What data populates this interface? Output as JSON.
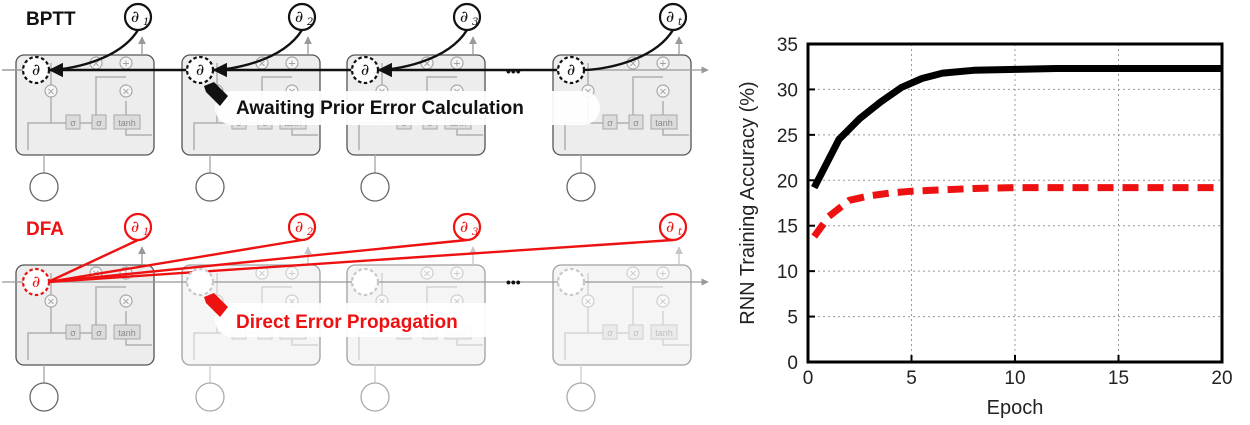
{
  "diagram": {
    "bptt_label": "BPTT",
    "dfa_label": "DFA",
    "bptt_callout": "Awaiting Prior Error Calculation",
    "dfa_callout": "Direct Error Propagation",
    "delta_symbol": "∂",
    "delta_subscripts": [
      "1",
      "2",
      "3",
      "t"
    ],
    "ellipsis": "•••",
    "gate_labels": [
      "σ",
      "σ",
      "tanh"
    ],
    "colors": {
      "bptt": "#111111",
      "dfa": "#ee1111",
      "cell_stroke": "#555555",
      "cell_fill": "#ededed",
      "faded": "#c8c8c8"
    }
  },
  "chart_data": {
    "type": "line",
    "title": "",
    "xlabel": "Epoch",
    "ylabel": "RNN Training Accuracy (%)",
    "xlim": [
      0,
      20
    ],
    "ylim": [
      0,
      35
    ],
    "xticks": [
      "0",
      "5",
      "10",
      "15",
      "20"
    ],
    "yticks": [
      "0",
      "5",
      "10",
      "15",
      "20",
      "25",
      "30",
      "35"
    ],
    "grid": true,
    "legend": "none",
    "series": [
      {
        "style": "solid",
        "color": "#000000",
        "x": [
          0.3,
          1.5,
          2.5,
          3.5,
          4.5,
          5.5,
          6.5,
          8,
          10,
          12,
          15,
          18,
          20
        ],
        "y": [
          19.2,
          24.5,
          26.8,
          28.6,
          30.2,
          31.2,
          31.8,
          32.1,
          32.2,
          32.3,
          32.3,
          32.3,
          32.3
        ]
      },
      {
        "style": "dashed",
        "color": "#ee1111",
        "x": [
          0.3,
          1,
          2,
          3,
          4,
          5,
          6,
          8,
          10,
          12,
          15,
          18,
          20
        ],
        "y": [
          13.8,
          16.0,
          17.8,
          18.3,
          18.6,
          18.8,
          18.9,
          19.1,
          19.2,
          19.2,
          19.2,
          19.2,
          19.2
        ]
      }
    ]
  }
}
